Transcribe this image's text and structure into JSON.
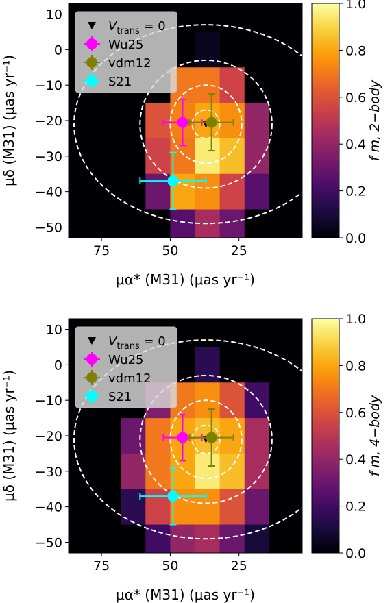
{
  "colormap": [
    "#000004",
    "#1b0c41",
    "#4a0c6b",
    "#781c6d",
    "#a52c60",
    "#cf4446",
    "#ed6925",
    "#fb9b06",
    "#f7d13d",
    "#fcffa4"
  ],
  "chart_data": [
    {
      "type": "heatmap",
      "panel": "top",
      "xlabel": "μα* (M31) (μas yr⁻¹)",
      "ylabel": "μδ (M31) (μas yr⁻¹)",
      "colorbar_label": "f m, 2−body",
      "xlim": [
        87,
        2
      ],
      "ylim": [
        -53,
        13
      ],
      "xticks": [
        75,
        50,
        25
      ],
      "yticks": [
        10,
        0,
        -10,
        -20,
        -30,
        -40,
        -50
      ],
      "cbar_ticks": [
        0.0,
        0.2,
        0.4,
        0.6,
        0.8,
        1.0
      ],
      "cbar_tick_labels": [
        "0.0",
        "0.2",
        "0.4",
        "0.6",
        "0.8",
        "1.0"
      ],
      "grid_x_edges": [
        87,
        77,
        68,
        59,
        50,
        41,
        32,
        23,
        14,
        2
      ],
      "grid_y_edges": [
        13,
        5,
        -5,
        -15,
        -25,
        -35,
        -45,
        -53
      ],
      "cells": [
        [
          0.0,
          0.0,
          0.0,
          0.0,
          0.0,
          0.0,
          0.0,
          0.0,
          0.0
        ],
        [
          0.0,
          0.0,
          0.0,
          0.0,
          0.0,
          0.05,
          0.0,
          0.0,
          0.0
        ],
        [
          0.0,
          0.0,
          0.0,
          0.0,
          0.7,
          0.7,
          0.55,
          0.0,
          0.0
        ],
        [
          0.0,
          0.0,
          0.0,
          0.6,
          0.72,
          0.8,
          0.75,
          0.4,
          0.0
        ],
        [
          0.0,
          0.0,
          0.0,
          0.55,
          0.7,
          0.95,
          0.85,
          0.4,
          0.0
        ],
        [
          0.0,
          0.0,
          0.0,
          0.3,
          0.8,
          0.75,
          0.55,
          0.25,
          0.0
        ],
        [
          0.0,
          0.0,
          0.0,
          0.0,
          0.25,
          0.45,
          0.3,
          0.0,
          0.0
        ]
      ],
      "ellipses": {
        "center": [
          37,
          -21
        ],
        "semi_axes_x": [
          5,
          13,
          24,
          48
        ],
        "semi_axes_y": [
          4,
          11,
          18,
          28
        ]
      },
      "vtrans_marker": {
        "x": 37,
        "y": -21
      },
      "points": [
        {
          "name": "Wu25",
          "x": 45.5,
          "y": -20.5,
          "xerr": 7,
          "yerr": 6.5,
          "color": "#ff00ff"
        },
        {
          "name": "vdm12",
          "x": 35,
          "y": -20.5,
          "xerr": 8,
          "yerr": 8,
          "color": "#808000"
        },
        {
          "name": "S21",
          "x": 49,
          "y": -37,
          "xerr": 12,
          "yerr": 8,
          "color": "#00ffff"
        }
      ],
      "legend": {
        "position": "upper-left",
        "entries": [
          {
            "symbol": "triangle",
            "label": "V",
            "label_sub": "trans",
            "label_suffix": " = 0"
          },
          {
            "symbol": "point",
            "label": "Wu25",
            "color": "#ff00ff"
          },
          {
            "symbol": "point",
            "label": "vdm12",
            "color": "#808000"
          },
          {
            "symbol": "point",
            "label": "S21",
            "color": "#00ffff"
          }
        ]
      }
    },
    {
      "type": "heatmap",
      "panel": "bottom",
      "xlabel": "μα* (M31) (μas yr⁻¹)",
      "ylabel": "μδ (M31) (μas yr⁻¹)",
      "colorbar_label": "f m, 4−body",
      "xlim": [
        87,
        2
      ],
      "ylim": [
        -53,
        13
      ],
      "xticks": [
        75,
        50,
        25
      ],
      "yticks": [
        10,
        0,
        -10,
        -20,
        -30,
        -40,
        -50
      ],
      "cbar_ticks": [
        0.0,
        0.2,
        0.4,
        0.6,
        0.8,
        1.0
      ],
      "cbar_tick_labels": [
        "0.0",
        "0.2",
        "0.4",
        "0.6",
        "0.8",
        "1.0"
      ],
      "grid_x_edges": [
        87,
        77,
        68,
        59,
        50,
        41,
        32,
        23,
        14,
        2
      ],
      "grid_y_edges": [
        13,
        5,
        -5,
        -15,
        -25,
        -35,
        -45,
        -53
      ],
      "cells": [
        [
          0.0,
          0.0,
          0.0,
          0.0,
          0.0,
          0.0,
          0.0,
          0.0,
          0.0
        ],
        [
          0.0,
          0.0,
          0.0,
          0.0,
          0.0,
          0.15,
          0.0,
          0.0,
          0.0
        ],
        [
          0.0,
          0.0,
          0.0,
          0.35,
          0.7,
          0.75,
          0.6,
          0.2,
          0.0
        ],
        [
          0.0,
          0.0,
          0.3,
          0.7,
          0.8,
          0.85,
          0.8,
          0.45,
          0.0
        ],
        [
          0.0,
          0.0,
          0.4,
          0.7,
          0.8,
          0.95,
          0.85,
          0.45,
          0.0
        ],
        [
          0.0,
          0.0,
          0.15,
          0.55,
          0.75,
          0.75,
          0.6,
          0.3,
          0.0
        ],
        [
          0.0,
          0.0,
          0.0,
          0.2,
          0.4,
          0.45,
          0.3,
          0.1,
          0.0
        ]
      ],
      "ellipses": {
        "center": [
          37,
          -21
        ],
        "semi_axes_x": [
          5,
          13,
          24,
          48
        ],
        "semi_axes_y": [
          4,
          11,
          18,
          28
        ]
      },
      "vtrans_marker": {
        "x": 37,
        "y": -21
      },
      "points": [
        {
          "name": "Wu25",
          "x": 45.5,
          "y": -20.5,
          "xerr": 7,
          "yerr": 6.5,
          "color": "#ff00ff"
        },
        {
          "name": "vdm12",
          "x": 35,
          "y": -20.5,
          "xerr": 8,
          "yerr": 8,
          "color": "#808000"
        },
        {
          "name": "S21",
          "x": 49,
          "y": -37,
          "xerr": 12,
          "yerr": 8,
          "color": "#00ffff"
        }
      ],
      "legend": {
        "position": "upper-left",
        "entries": [
          {
            "symbol": "triangle",
            "label": "V",
            "label_sub": "trans",
            "label_suffix": " = 0"
          },
          {
            "symbol": "point",
            "label": "Wu25",
            "color": "#ff00ff"
          },
          {
            "symbol": "point",
            "label": "vdm12",
            "color": "#808000"
          },
          {
            "symbol": "point",
            "label": "S21",
            "color": "#00ffff"
          }
        ]
      }
    }
  ]
}
